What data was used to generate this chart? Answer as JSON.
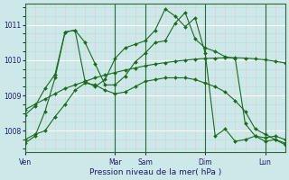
{
  "bg_color": "#cce8e8",
  "line_color": "#1a6b1a",
  "marker_color": "#1a6b1a",
  "xlabel": "Pression niveau de la mer( hPa )",
  "ylim": [
    1007.4,
    1011.6
  ],
  "yticks": [
    1008,
    1009,
    1010,
    1011
  ],
  "x_day_labels": [
    "Ven",
    "Mar",
    "Sam",
    "Dim",
    "Lun"
  ],
  "x_day_positions": [
    0,
    9,
    12,
    18,
    24
  ],
  "total_points": 27,
  "series": [
    [
      1007.65,
      1007.85,
      1008.55,
      1009.5,
      1010.8,
      1010.85,
      1010.5,
      1009.9,
      1009.3,
      1009.3,
      1009.55,
      1009.95,
      1010.2,
      1010.5,
      1010.55,
      1011.05,
      1011.35,
      1010.6,
      1010.35,
      1010.25,
      1010.1,
      1010.05,
      1008.2,
      1007.85,
      1007.8,
      1007.85,
      1007.75
    ],
    [
      1008.6,
      1008.75,
      1008.9,
      1009.05,
      1009.2,
      1009.3,
      1009.4,
      1009.5,
      1009.58,
      1009.65,
      1009.72,
      1009.78,
      1009.84,
      1009.89,
      1009.93,
      1009.97,
      1010.0,
      1010.03,
      1010.05,
      1010.06,
      1010.07,
      1010.07,
      1010.06,
      1010.04,
      1010.01,
      1009.97,
      1009.92
    ],
    [
      1008.45,
      1008.7,
      1009.2,
      1009.6,
      1010.8,
      1010.85,
      1009.4,
      1009.25,
      1009.45,
      1010.05,
      1010.35,
      1010.45,
      1010.55,
      1010.85,
      1011.45,
      1011.25,
      1010.95,
      1011.2,
      1010.2,
      1007.85,
      1008.05,
      1007.7,
      1007.75,
      1007.85,
      1007.7,
      1007.75,
      1007.6
    ],
    [
      1007.75,
      1007.9,
      1008.0,
      1008.4,
      1008.75,
      1009.15,
      1009.35,
      1009.3,
      1009.15,
      1009.05,
      1009.1,
      1009.25,
      1009.4,
      1009.45,
      1009.5,
      1009.5,
      1009.5,
      1009.45,
      1009.35,
      1009.25,
      1009.1,
      1008.85,
      1008.55,
      1008.05,
      1007.9,
      1007.75,
      1007.65
    ]
  ]
}
